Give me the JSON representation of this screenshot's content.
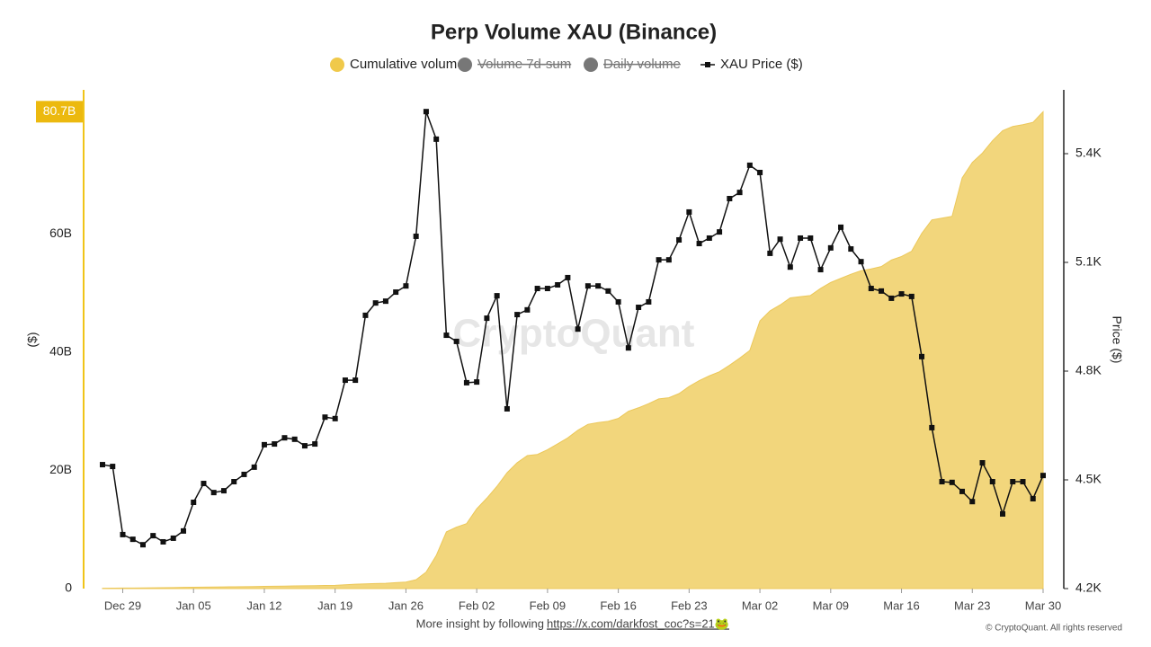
{
  "chart_data": {
    "type": "area-line",
    "title": "Perp Volume XAU (Binance)",
    "ylabel": "($)",
    "y2label": "Price ($)",
    "watermark": "CryptoQuant",
    "footer": "More insight by following",
    "footer_link": "https://x.com/darkfost_coc?s=21🐸",
    "copyright": "© CryptoQuant. All rights reserved",
    "x": [
      "Dec 27",
      "Dec 28",
      "Dec 29",
      "Dec 30",
      "Dec 31",
      "Jan 01",
      "Jan 02",
      "Jan 03",
      "Jan 04",
      "Jan 05",
      "Jan 06",
      "Jan 07",
      "Jan 08",
      "Jan 09",
      "Jan 10",
      "Jan 11",
      "Jan 12",
      "Jan 13",
      "Jan 14",
      "Jan 15",
      "Jan 16",
      "Jan 17",
      "Jan 18",
      "Jan 19",
      "Jan 20",
      "Jan 21",
      "Jan 22",
      "Jan 23",
      "Jan 24",
      "Jan 25",
      "Jan 26",
      "Jan 27",
      "Jan 28",
      "Jan 29",
      "Jan 30",
      "Jan 31",
      "Feb 01",
      "Feb 02",
      "Feb 03",
      "Feb 04",
      "Feb 05",
      "Feb 06",
      "Feb 07",
      "Feb 08",
      "Feb 09",
      "Feb 10",
      "Feb 11",
      "Feb 12",
      "Feb 13",
      "Feb 14",
      "Feb 15",
      "Feb 16",
      "Feb 17",
      "Feb 18",
      "Feb 19",
      "Feb 20",
      "Feb 21",
      "Feb 22",
      "Feb 23",
      "Feb 24",
      "Feb 25",
      "Feb 26",
      "Feb 27",
      "Feb 28",
      "Mar 01",
      "Mar 02",
      "Mar 03",
      "Mar 04",
      "Mar 05",
      "Mar 06",
      "Mar 07",
      "Mar 08",
      "Mar 09",
      "Mar 10",
      "Mar 11",
      "Mar 12",
      "Mar 13",
      "Mar 14",
      "Mar 15",
      "Mar 16",
      "Mar 17",
      "Mar 18",
      "Mar 19",
      "Mar 20",
      "Mar 21",
      "Mar 22",
      "Mar 23",
      "Mar 24",
      "Mar 25",
      "Mar 26",
      "Mar 27",
      "Mar 28",
      "Mar 29",
      "Mar 30"
    ],
    "xticks": [
      "Dec 29",
      "Jan 05",
      "Jan 12",
      "Jan 19",
      "Jan 26",
      "Feb 02",
      "Feb 09",
      "Feb 16",
      "Feb 23",
      "Mar 02",
      "Mar 09",
      "Mar 16",
      "Mar 23",
      "Mar 30"
    ],
    "ylim": [
      0,
      84.4
    ],
    "yticks": [
      0,
      {
        "value": 20,
        "label": "20B"
      },
      {
        "value": 40,
        "label": "40B"
      },
      {
        "value": 60,
        "label": "60B"
      }
    ],
    "y2lim": [
      4200,
      5576
    ],
    "y2ticks": [
      {
        "value": 4200,
        "label": "4.2K"
      },
      {
        "value": 4500,
        "label": "4.5K"
      },
      {
        "value": 4800,
        "label": "4.8K"
      },
      {
        "value": 5100,
        "label": "5.1K"
      },
      {
        "value": 5400,
        "label": "5.4K"
      }
    ],
    "series": [
      {
        "name": "Cumulative volume",
        "color": "#f2d67c",
        "style": "area",
        "last_label": "80.7B",
        "values": [
          0.05,
          0.07,
          0.09,
          0.1,
          0.12,
          0.14,
          0.16,
          0.18,
          0.2,
          0.22,
          0.25,
          0.27,
          0.29,
          0.31,
          0.33,
          0.35,
          0.38,
          0.4,
          0.42,
          0.45,
          0.48,
          0.5,
          0.53,
          0.56,
          0.65,
          0.75,
          0.8,
          0.85,
          0.9,
          1.0,
          1.1,
          1.5,
          2.8,
          5.6,
          9.6,
          10.4,
          11.0,
          13.5,
          15.3,
          17.3,
          19.6,
          21.3,
          22.5,
          22.7,
          23.5,
          24.5,
          25.5,
          26.8,
          27.8,
          28.1,
          28.3,
          28.8,
          30.0,
          30.6,
          31.3,
          32.1,
          32.3,
          33.0,
          34.2,
          35.2,
          36.0,
          36.7,
          37.8,
          39.0,
          40.3,
          45.3,
          47.0,
          48.0,
          49.2,
          49.4,
          49.6,
          50.8,
          51.8,
          52.5,
          53.2,
          53.8,
          54.1,
          54.5,
          55.6,
          56.2,
          57.1,
          60.1,
          62.4,
          62.7,
          63.0,
          69.5,
          72.1,
          73.7,
          75.8,
          77.5,
          78.2,
          78.5,
          78.9,
          80.7
        ]
      },
      {
        "name": "Volume 7d-sum",
        "color": "#777777",
        "hidden": true
      },
      {
        "name": "Daily volume",
        "color": "#777777",
        "hidden": true
      },
      {
        "name": "XAU Price ($)",
        "color": "#111111",
        "style": "line-marker",
        "axis": "y2",
        "values": [
          4542,
          4537,
          4349,
          4336,
          4321,
          4346,
          4329,
          4339,
          4359,
          4438,
          4490,
          4465,
          4470,
          4495,
          4515,
          4535,
          4597,
          4599,
          4616,
          4612,
          4594,
          4599,
          4673,
          4669,
          4775,
          4775,
          4954,
          4988,
          4993,
          5018,
          5035,
          5172,
          5516,
          5440,
          4899,
          4882,
          4768,
          4770,
          4946,
          5008,
          4696,
          4956,
          4969,
          5028,
          5028,
          5038,
          5058,
          4916,
          5035,
          5035,
          5021,
          4991,
          4864,
          4976,
          4991,
          5107,
          5107,
          5162,
          5239,
          5152,
          5167,
          5184,
          5276,
          5293,
          5368,
          5348,
          5125,
          5164,
          5087,
          5167,
          5167,
          5080,
          5140,
          5197,
          5137,
          5102,
          5028,
          5021,
          5001,
          5013,
          5006,
          4840,
          4644,
          4495,
          4493,
          4468,
          4440,
          4547,
          4495,
          4406,
          4495,
          4495,
          4448,
          4512
        ]
      }
    ]
  }
}
